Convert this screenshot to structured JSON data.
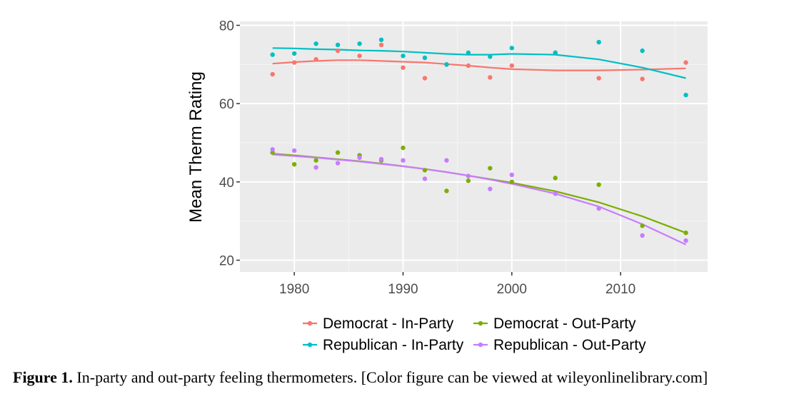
{
  "chart_data": {
    "type": "scatter",
    "xlabel": "",
    "ylabel": "Mean Therm Rating",
    "xlim": [
      1975,
      2018
    ],
    "ylim": [
      17,
      81
    ],
    "xticks": [
      1980,
      1990,
      2000,
      2010
    ],
    "yticks": [
      20,
      40,
      60,
      80
    ],
    "x": [
      1978,
      1980,
      1982,
      1984,
      1986,
      1988,
      1990,
      1992,
      1994,
      1996,
      1998,
      2000,
      2004,
      2008,
      2012,
      2016
    ],
    "grid": true,
    "legend_position": "bottom",
    "series": [
      {
        "name": "Democrat - In-Party",
        "color": "#f8766d",
        "values": [
          67.5,
          70.5,
          71.3,
          73.5,
          72.2,
          75.0,
          69.2,
          66.5,
          70.0,
          69.7,
          66.7,
          69.7,
          73.0,
          66.5,
          66.3,
          70.5
        ],
        "trend": [
          70.2,
          70.6,
          70.9,
          71.1,
          71.1,
          70.9,
          70.7,
          70.5,
          70.1,
          69.7,
          69.2,
          68.8,
          68.5,
          68.5,
          68.7,
          69.0
        ]
      },
      {
        "name": "Republican - In-Party",
        "color": "#00bfc4",
        "values": [
          72.5,
          72.8,
          75.3,
          75.0,
          75.3,
          76.3,
          72.2,
          71.7,
          70.0,
          73.0,
          72.0,
          74.2,
          73.0,
          75.7,
          73.5,
          62.2
        ],
        "trend": [
          74.2,
          74.1,
          73.9,
          73.8,
          73.6,
          73.5,
          73.3,
          73.0,
          72.7,
          72.5,
          72.5,
          72.7,
          72.5,
          71.3,
          69.2,
          66.5
        ]
      },
      {
        "name": "Democrat - Out-Party",
        "color": "#7cae00",
        "values": [
          47.5,
          44.5,
          45.5,
          47.5,
          46.8,
          45.5,
          48.7,
          43.0,
          37.7,
          40.3,
          43.5,
          40.0,
          41.0,
          39.3,
          28.8,
          27.0
        ],
        "trend": [
          47.2,
          46.8,
          46.3,
          45.8,
          45.3,
          44.7,
          44.0,
          43.3,
          42.5,
          41.6,
          40.7,
          39.8,
          37.6,
          34.8,
          31.2,
          27.0
        ]
      },
      {
        "name": "Republican - Out-Party",
        "color": "#c77cff",
        "values": [
          48.3,
          48.0,
          43.7,
          44.8,
          46.2,
          45.8,
          45.5,
          40.8,
          45.5,
          41.5,
          38.2,
          41.8,
          37.0,
          33.2,
          26.3,
          25.0
        ],
        "trend": [
          47.0,
          46.6,
          46.2,
          45.7,
          45.2,
          44.6,
          44.0,
          43.3,
          42.5,
          41.6,
          40.6,
          39.5,
          37.0,
          33.7,
          29.2,
          24.0
        ]
      }
    ]
  },
  "caption": {
    "label": "Figure 1.",
    "text": " In-party and out-party feeling thermometers. [Color figure can be viewed at wileyonlinelibrary.com]"
  }
}
